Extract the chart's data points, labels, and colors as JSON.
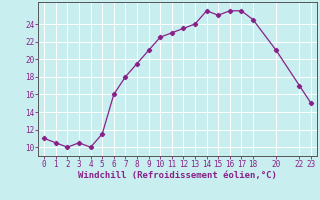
{
  "x_values": [
    0,
    1,
    2,
    3,
    4,
    5,
    6,
    7,
    8,
    9,
    10,
    11,
    12,
    13,
    14,
    15,
    16,
    17,
    18,
    20,
    22,
    23
  ],
  "y_values": [
    11,
    10.5,
    10,
    10.5,
    10,
    11.5,
    16,
    18,
    19.5,
    21,
    22.5,
    23,
    23.5,
    24,
    25.5,
    25,
    25.5,
    25.5,
    24.5,
    21,
    17,
    15
  ],
  "line_color": "#882288",
  "marker": "D",
  "marker_size": 2.2,
  "bg_color": "#c8eef0",
  "grid_color": "#ffffff",
  "axis_color": "#555555",
  "xlabel": "Windchill (Refroidissement éolien,°C)",
  "xlim": [
    -0.5,
    23.5
  ],
  "ylim": [
    9.0,
    26.5
  ],
  "yticks": [
    10,
    12,
    14,
    16,
    18,
    20,
    22,
    24
  ],
  "xticks": [
    0,
    1,
    2,
    3,
    4,
    5,
    6,
    7,
    8,
    9,
    10,
    11,
    12,
    13,
    14,
    15,
    16,
    17,
    18,
    20,
    22,
    23
  ],
  "xtick_labels": [
    "0",
    "1",
    "2",
    "3",
    "4",
    "5",
    "6",
    "7",
    "8",
    "9",
    "10",
    "11",
    "12",
    "13",
    "14",
    "15",
    "16",
    "17",
    "18",
    "20",
    "22",
    "23"
  ],
  "font_size": 5.5,
  "label_font_size": 6.5
}
